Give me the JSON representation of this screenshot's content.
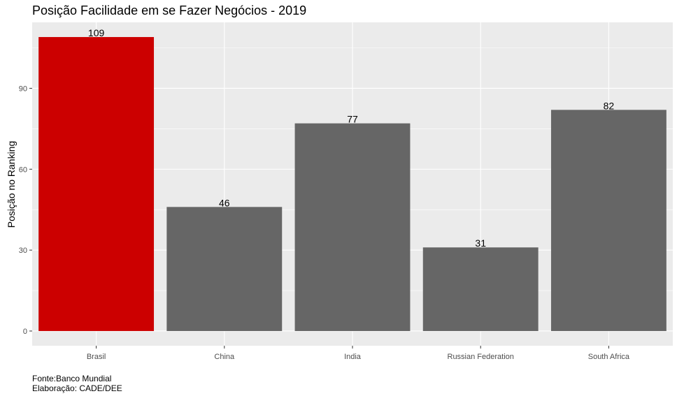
{
  "colors": {
    "highlight": "#CC0000",
    "default_bar": "#666666",
    "panel": "#EBEBEB",
    "grid": "#FFFFFF"
  },
  "chart_data": {
    "type": "bar",
    "title": "Posição Facilidade em se Fazer Negócios - 2019",
    "xlabel": "",
    "ylabel": "Posição no Ranking",
    "categories": [
      "Brasil",
      "China",
      "India",
      "Russian Federation",
      "South Africa"
    ],
    "values": [
      109,
      46,
      77,
      31,
      82
    ],
    "highlight": "Brasil",
    "y_ticks": [
      0,
      30,
      60,
      90
    ],
    "ylim": [
      -5.45,
      114.45
    ],
    "grid": true,
    "legend": "none"
  },
  "caption": {
    "line1": "Fonte:Banco Mundial",
    "line2": "Elaboração: CADE/DEE"
  }
}
